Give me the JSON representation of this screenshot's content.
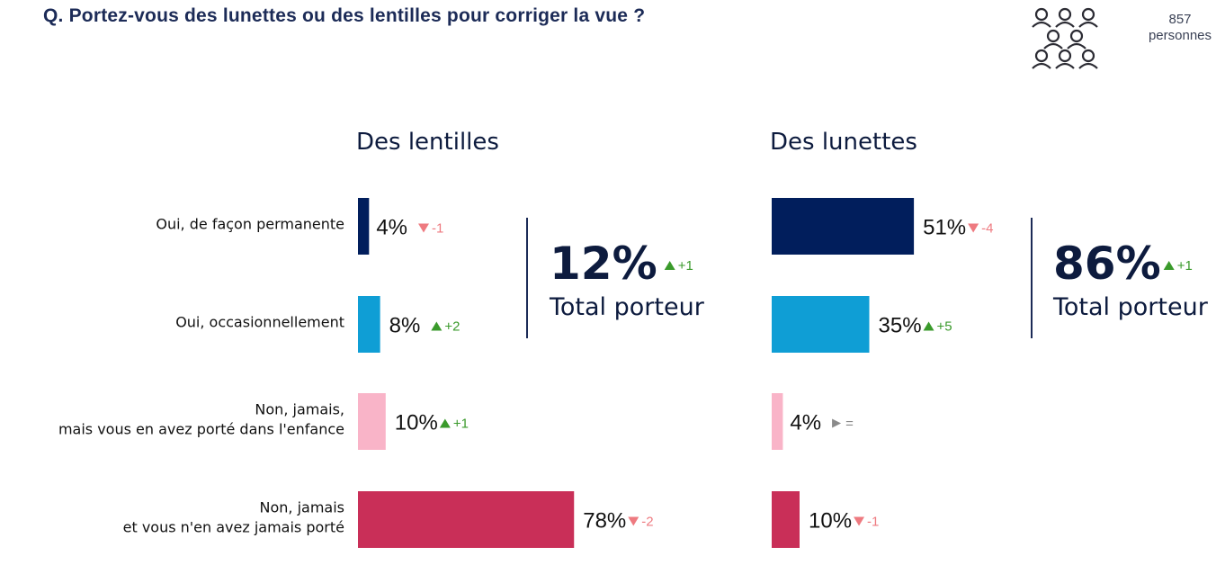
{
  "question": "Q. Portez-vous des lunettes ou des lentilles pour corriger la vue ?",
  "sample": {
    "count": "857",
    "label": "personnes",
    "icon": "people-group-icon"
  },
  "colors": {
    "navy": "#011e5c",
    "blue": "#0f9ed5",
    "pink": "#f9b4c8",
    "crimson": "#c92f58",
    "up": "#3a9a2b",
    "down": "#ee7a80",
    "flat": "#8a8a8a",
    "text_dark": "#0d1b3e"
  },
  "chart_data": [
    {
      "type": "bar",
      "orientation": "horizontal",
      "title": "Des lentilles",
      "categories": [
        "Oui, de façon permanente",
        "Oui, occasionnellement",
        "Non, jamais,\nmais vous en avez porté dans l'enfance",
        "Non, jamais\net vous n'en avez jamais porté"
      ],
      "values": [
        4,
        8,
        10,
        78
      ],
      "value_labels": [
        "4%",
        "8%",
        "10%",
        "78%"
      ],
      "deltas": [
        {
          "dir": "down",
          "text": "-1"
        },
        {
          "dir": "up",
          "text": "+2"
        },
        {
          "dir": "up",
          "text": "+1"
        },
        {
          "dir": "down",
          "text": "-2"
        }
      ],
      "xlim": [
        0,
        100
      ],
      "total": {
        "value": "12%",
        "label": "Total porteur",
        "delta": {
          "dir": "up",
          "text": "+1"
        }
      }
    },
    {
      "type": "bar",
      "orientation": "horizontal",
      "title": "Des lunettes",
      "categories": [
        "Oui, de façon permanente",
        "Oui, occasionnellement",
        "Non, jamais,\nmais vous en avez porté dans l'enfance",
        "Non, jamais\net vous n'en avez jamais porté"
      ],
      "values": [
        51,
        35,
        4,
        10
      ],
      "value_labels": [
        "51%",
        "35%",
        "4%",
        "10%"
      ],
      "deltas": [
        {
          "dir": "down",
          "text": "-4"
        },
        {
          "dir": "up",
          "text": "+5"
        },
        {
          "dir": "flat",
          "text": "="
        },
        {
          "dir": "down",
          "text": "-1"
        }
      ],
      "xlim": [
        0,
        100
      ],
      "total": {
        "value": "86%",
        "label": "Total porteur",
        "delta": {
          "dir": "up",
          "text": "+1"
        }
      }
    }
  ]
}
